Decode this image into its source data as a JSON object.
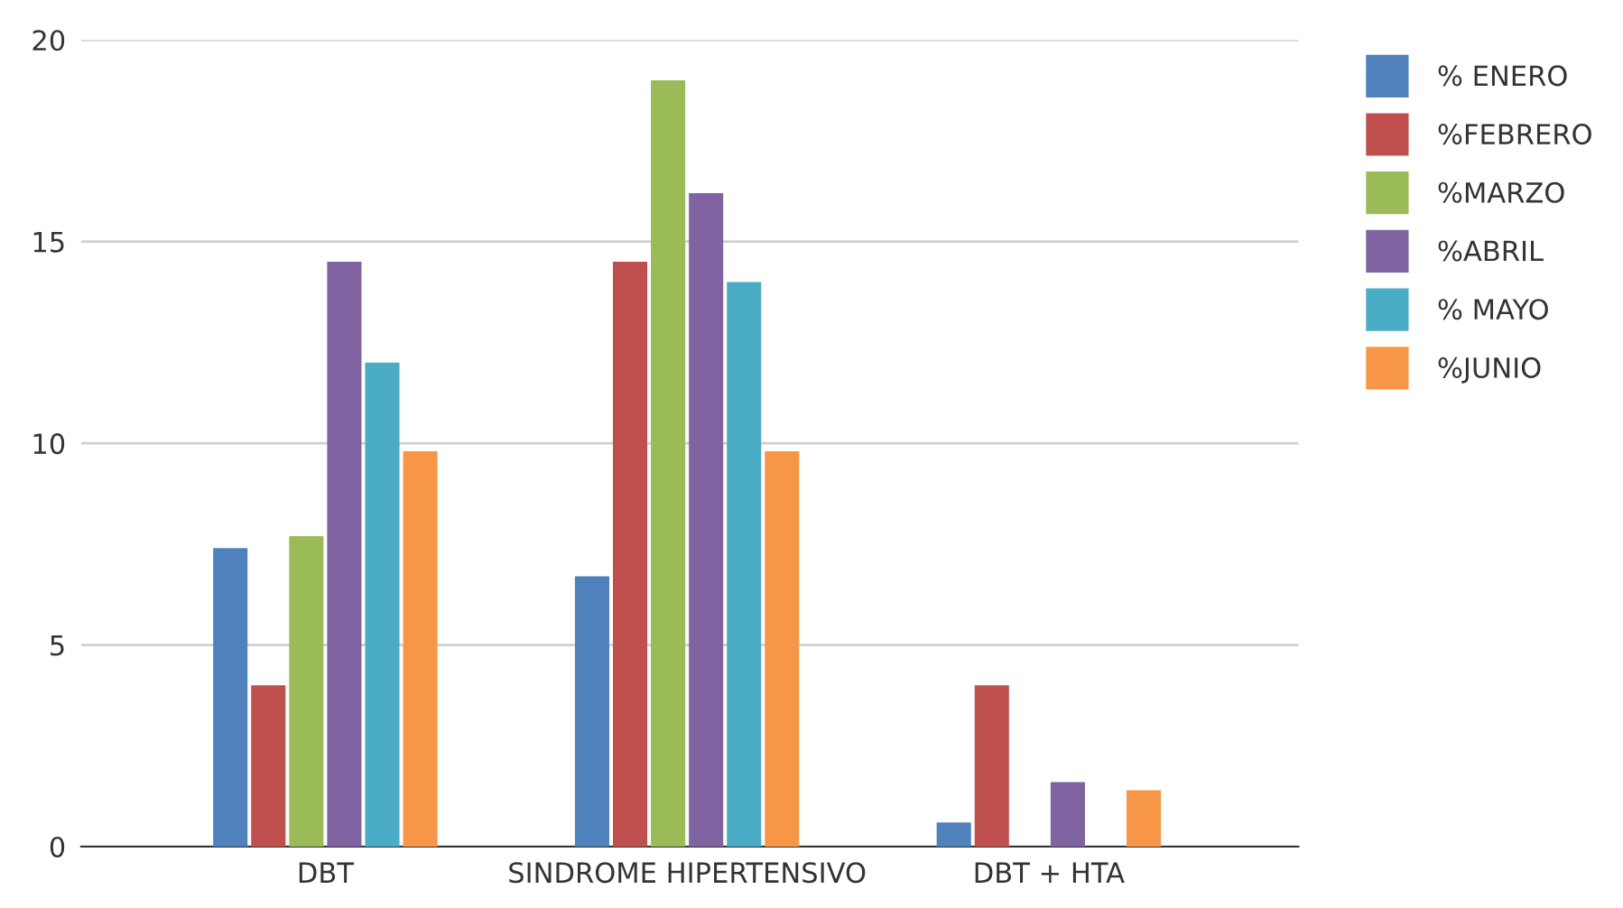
{
  "chart_data": {
    "type": "bar",
    "categories": [
      "DBT",
      "SINDROME HIPERTENSIVO",
      "DBT + HTA"
    ],
    "series": [
      {
        "name": "% ENERO",
        "color": "#4f81bd",
        "values": [
          7.4,
          6.7,
          0.6
        ]
      },
      {
        "name": "%FEBRERO",
        "color": "#c0504d",
        "values": [
          4,
          14.5,
          4
        ]
      },
      {
        "name": "%MARZO",
        "color": "#9bbb59",
        "values": [
          7.7,
          19,
          0
        ]
      },
      {
        "name": "%ABRIL",
        "color": "#8064a2",
        "values": [
          14.5,
          16.2,
          1.6
        ]
      },
      {
        "name": "% MAYO",
        "color": "#4bacc6",
        "values": [
          12,
          14,
          0
        ]
      },
      {
        "name": "%JUNIO",
        "color": "#f79646",
        "values": [
          9.8,
          9.8,
          1.4
        ]
      }
    ],
    "ylim": [
      0,
      20
    ],
    "yticks": [
      0,
      5,
      10,
      15,
      20
    ],
    "grid": "y",
    "legend": "right"
  }
}
